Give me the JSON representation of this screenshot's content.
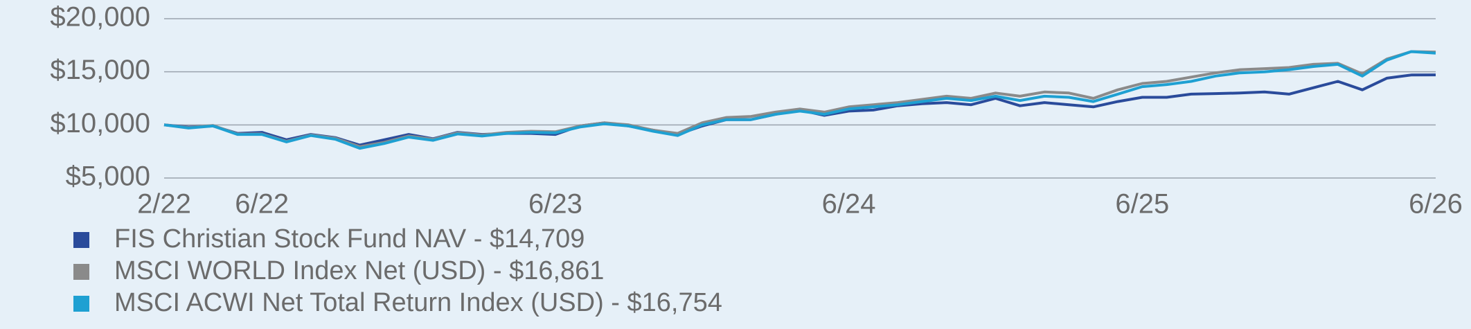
{
  "chart_data": {
    "type": "line",
    "categories": [
      "2/22",
      null,
      null,
      null,
      "6/22",
      null,
      null,
      null,
      null,
      null,
      null,
      null,
      null,
      null,
      null,
      null,
      "6/23",
      null,
      null,
      null,
      null,
      null,
      null,
      null,
      null,
      null,
      null,
      null,
      "6/24",
      null,
      null,
      null,
      null,
      null,
      null,
      null,
      null,
      null,
      null,
      null,
      "6/25",
      null,
      null,
      null,
      null,
      null,
      null,
      null,
      null,
      null,
      null,
      null,
      "6/26"
    ],
    "series": [
      {
        "name": "FIS Christian Stock Fund NAV - $14,709",
        "color": "#2a4b9b",
        "values": [
          10000,
          9800,
          9900,
          9200,
          9300,
          8600,
          9100,
          8800,
          8100,
          8600,
          9100,
          8700,
          9300,
          9100,
          9200,
          9200,
          9100,
          9900,
          10200,
          9900,
          9500,
          9100,
          9900,
          10500,
          10500,
          11000,
          11400,
          10900,
          11300,
          11400,
          11800,
          12000,
          12100,
          11900,
          12500,
          11800,
          12100,
          11900,
          11700,
          12200,
          12600,
          12600,
          12900,
          12950,
          13000,
          13100,
          12900,
          13500,
          14100,
          13300,
          14400,
          14700,
          14709
        ]
      },
      {
        "name": "MSCI WORLD Index Net (USD) - $16,861",
        "color": "#8a8a8a",
        "values": [
          10000,
          9750,
          9950,
          9150,
          9150,
          8450,
          9050,
          8750,
          7950,
          8350,
          8950,
          8650,
          9250,
          9050,
          9300,
          9400,
          9350,
          9900,
          10200,
          10000,
          9500,
          9200,
          10200,
          10700,
          10800,
          11200,
          11500,
          11200,
          11700,
          11900,
          12100,
          12400,
          12700,
          12500,
          13000,
          12700,
          13100,
          13000,
          12500,
          13300,
          13900,
          14100,
          14500,
          14900,
          15200,
          15300,
          15400,
          15700,
          15800,
          14800,
          16200,
          16900,
          16861
        ]
      },
      {
        "name": "MSCI ACWI Net Total Return Index (USD) - $16,754",
        "color": "#1ea0d2",
        "values": [
          10000,
          9700,
          9900,
          9100,
          9100,
          8400,
          9000,
          8650,
          7800,
          8250,
          8850,
          8550,
          9150,
          8950,
          9200,
          9300,
          9250,
          9800,
          10100,
          9900,
          9400,
          9000,
          10000,
          10500,
          10500,
          11000,
          11300,
          11000,
          11500,
          11700,
          11900,
          12200,
          12500,
          12300,
          12700,
          12300,
          12700,
          12600,
          12200,
          12900,
          13600,
          13800,
          14100,
          14600,
          14900,
          15000,
          15200,
          15500,
          15700,
          14600,
          16100,
          16900,
          16754
        ]
      }
    ],
    "ylim": [
      5000,
      20000
    ],
    "yticks": [
      {
        "value": 5000,
        "label": "$5,000"
      },
      {
        "value": 10000,
        "label": "$10,000"
      },
      {
        "value": 15000,
        "label": "$15,000"
      },
      {
        "value": 20000,
        "label": "$20,000"
      }
    ],
    "grid": true
  }
}
